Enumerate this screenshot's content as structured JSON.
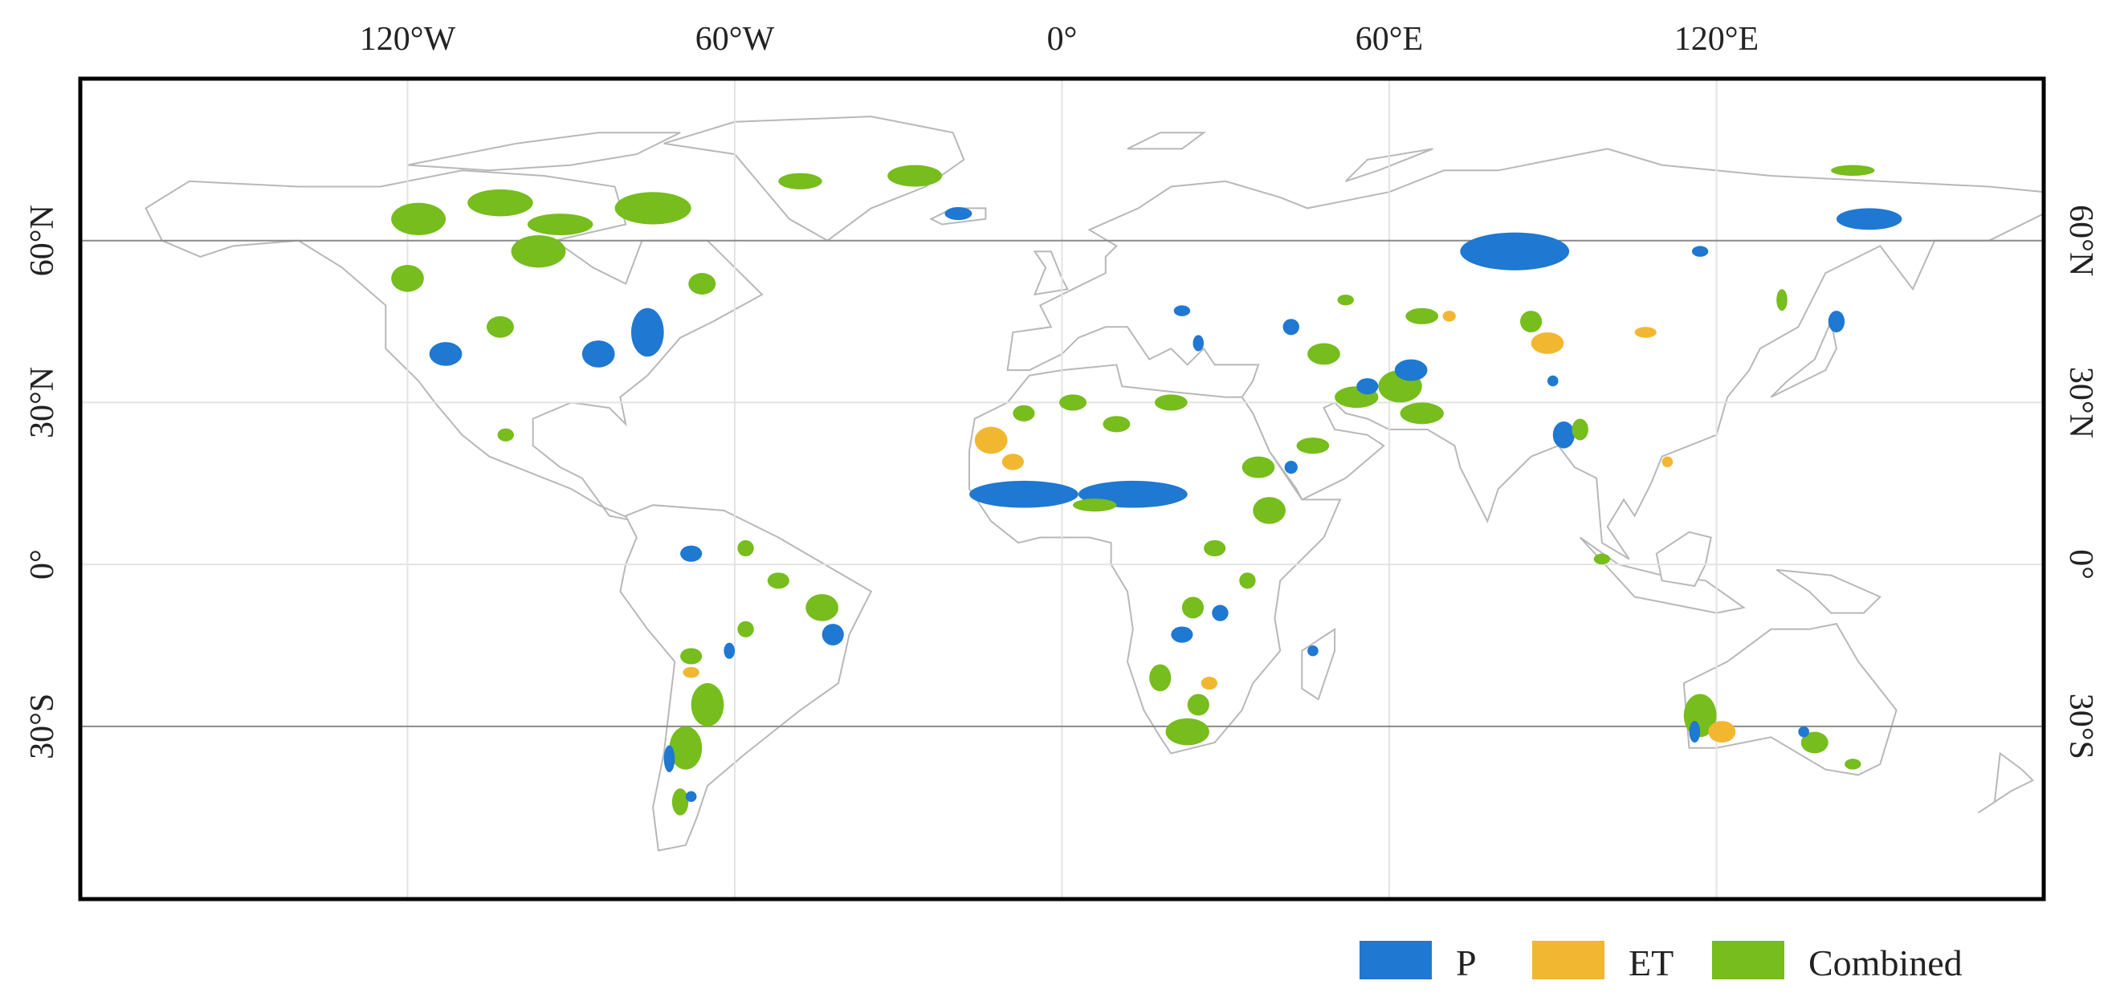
{
  "map": {
    "lon_ticks": [
      {
        "lon": -120,
        "label": "120°W"
      },
      {
        "lon": -60,
        "label": "60°W"
      },
      {
        "lon": 0,
        "label": "0°"
      },
      {
        "lon": 60,
        "label": "60°E"
      },
      {
        "lon": 120,
        "label": "120°E"
      }
    ],
    "lat_ticks": [
      {
        "lat": 60,
        "label": "60°N"
      },
      {
        "lat": 30,
        "label": "30°N"
      },
      {
        "lat": 0,
        "label": "0°"
      },
      {
        "lat": -30,
        "label": "30°S"
      }
    ],
    "reference_lats": [
      60,
      -30
    ],
    "extent": {
      "lon": [
        -180,
        180
      ],
      "lat": [
        -62,
        90
      ]
    }
  },
  "legend": {
    "placement": "bottom-right",
    "items": [
      {
        "key": "P",
        "label": "P",
        "color": "#1f78d1"
      },
      {
        "key": "ET",
        "label": "ET",
        "color": "#f2b731"
      },
      {
        "key": "Combined",
        "label": "Combined",
        "color": "#76bd1d"
      }
    ]
  },
  "regions": [
    {
      "type": "Combined",
      "lon": -118,
      "lat": 64,
      "rx": 5,
      "ry": 3
    },
    {
      "type": "Combined",
      "lon": -103,
      "lat": 67,
      "rx": 6,
      "ry": 2.5
    },
    {
      "type": "Combined",
      "lon": -92,
      "lat": 63,
      "rx": 6,
      "ry": 2
    },
    {
      "type": "Combined",
      "lon": -75,
      "lat": 66,
      "rx": 7,
      "ry": 3
    },
    {
      "type": "Combined",
      "lon": -48,
      "lat": 71,
      "rx": 4,
      "ry": 1.5
    },
    {
      "type": "Combined",
      "lon": -27,
      "lat": 72,
      "rx": 5,
      "ry": 2
    },
    {
      "type": "P",
      "lon": -19,
      "lat": 65,
      "rx": 2.5,
      "ry": 1.2
    },
    {
      "type": "Combined",
      "lon": -96,
      "lat": 58,
      "rx": 5,
      "ry": 3
    },
    {
      "type": "Combined",
      "lon": -120,
      "lat": 53,
      "rx": 3,
      "ry": 2.5
    },
    {
      "type": "Combined",
      "lon": -103,
      "lat": 44,
      "rx": 2.5,
      "ry": 2
    },
    {
      "type": "P",
      "lon": -113,
      "lat": 39,
      "rx": 3,
      "ry": 2.2
    },
    {
      "type": "P",
      "lon": -85,
      "lat": 39,
      "rx": 3,
      "ry": 2.5
    },
    {
      "type": "P",
      "lon": -76,
      "lat": 43,
      "rx": 3,
      "ry": 4.5
    },
    {
      "type": "Combined",
      "lon": -66,
      "lat": 52,
      "rx": 2.5,
      "ry": 2
    },
    {
      "type": "Combined",
      "lon": -102,
      "lat": 24,
      "rx": 1.5,
      "ry": 1.2
    },
    {
      "type": "P",
      "lon": -68,
      "lat": 2,
      "rx": 2,
      "ry": 1.5
    },
    {
      "type": "Combined",
      "lon": -58,
      "lat": 3,
      "rx": 1.5,
      "ry": 1.5
    },
    {
      "type": "Combined",
      "lon": -52,
      "lat": -3,
      "rx": 2,
      "ry": 1.5
    },
    {
      "type": "Combined",
      "lon": -44,
      "lat": -8,
      "rx": 3,
      "ry": 2.5
    },
    {
      "type": "P",
      "lon": -42,
      "lat": -13,
      "rx": 2,
      "ry": 2
    },
    {
      "type": "Combined",
      "lon": -58,
      "lat": -12,
      "rx": 1.5,
      "ry": 1.5
    },
    {
      "type": "Combined",
      "lon": -68,
      "lat": -17,
      "rx": 2,
      "ry": 1.5
    },
    {
      "type": "P",
      "lon": -61,
      "lat": -16,
      "rx": 1,
      "ry": 1.5
    },
    {
      "type": "Combined",
      "lon": -65,
      "lat": -26,
      "rx": 3,
      "ry": 4
    },
    {
      "type": "Combined",
      "lon": -69,
      "lat": -34,
      "rx": 3,
      "ry": 4
    },
    {
      "type": "P",
      "lon": -72,
      "lat": -36,
      "rx": 1,
      "ry": 2.5
    },
    {
      "type": "ET",
      "lon": -68,
      "lat": -20,
      "rx": 1.5,
      "ry": 1
    },
    {
      "type": "Combined",
      "lon": -70,
      "lat": -44,
      "rx": 1.5,
      "ry": 2.5
    },
    {
      "type": "P",
      "lon": -68,
      "lat": -43,
      "rx": 1,
      "ry": 1
    },
    {
      "type": "ET",
      "lon": -13,
      "lat": 23,
      "rx": 3,
      "ry": 2.5
    },
    {
      "type": "ET",
      "lon": -9,
      "lat": 19,
      "rx": 2,
      "ry": 1.5
    },
    {
      "type": "Combined",
      "lon": -7,
      "lat": 28,
      "rx": 2,
      "ry": 1.5
    },
    {
      "type": "P",
      "lon": -7,
      "lat": 13,
      "rx": 10,
      "ry": 2.5
    },
    {
      "type": "P",
      "lon": 13,
      "lat": 13,
      "rx": 10,
      "ry": 2.5
    },
    {
      "type": "Combined",
      "lon": 6,
      "lat": 11,
      "rx": 4,
      "ry": 1.2
    },
    {
      "type": "Combined",
      "lon": 2,
      "lat": 30,
      "rx": 2.5,
      "ry": 1.5
    },
    {
      "type": "Combined",
      "lon": 10,
      "lat": 26,
      "rx": 2.5,
      "ry": 1.5
    },
    {
      "type": "Combined",
      "lon": 20,
      "lat": 30,
      "rx": 3,
      "ry": 1.5
    },
    {
      "type": "Combined",
      "lon": 36,
      "lat": 18,
      "rx": 3,
      "ry": 2
    },
    {
      "type": "Combined",
      "lon": 38,
      "lat": 10,
      "rx": 3,
      "ry": 2.5
    },
    {
      "type": "Combined",
      "lon": 28,
      "lat": 3,
      "rx": 2,
      "ry": 1.5
    },
    {
      "type": "Combined",
      "lon": 34,
      "lat": -3,
      "rx": 1.5,
      "ry": 1.5
    },
    {
      "type": "Combined",
      "lon": 24,
      "lat": -8,
      "rx": 2,
      "ry": 2
    },
    {
      "type": "P",
      "lon": 22,
      "lat": -13,
      "rx": 2,
      "ry": 1.5
    },
    {
      "type": "P",
      "lon": 29,
      "lat": -9,
      "rx": 1.5,
      "ry": 1.5
    },
    {
      "type": "Combined",
      "lon": 18,
      "lat": -21,
      "rx": 2,
      "ry": 2.5
    },
    {
      "type": "ET",
      "lon": 27,
      "lat": -22,
      "rx": 1.5,
      "ry": 1.2
    },
    {
      "type": "Combined",
      "lon": 25,
      "lat": -26,
      "rx": 2,
      "ry": 2
    },
    {
      "type": "Combined",
      "lon": 23,
      "lat": -31,
      "rx": 4,
      "ry": 2.5
    },
    {
      "type": "P",
      "lon": 46,
      "lat": -16,
      "rx": 1,
      "ry": 1
    },
    {
      "type": "P",
      "lon": 22,
      "lat": 47,
      "rx": 1.5,
      "ry": 1
    },
    {
      "type": "P",
      "lon": 25,
      "lat": 41,
      "rx": 1,
      "ry": 1.5
    },
    {
      "type": "P",
      "lon": 42,
      "lat": 44,
      "rx": 1.5,
      "ry": 1.5
    },
    {
      "type": "Combined",
      "lon": 48,
      "lat": 39,
      "rx": 3,
      "ry": 2
    },
    {
      "type": "Combined",
      "lon": 54,
      "lat": 31,
      "rx": 4,
      "ry": 2
    },
    {
      "type": "P",
      "lon": 56,
      "lat": 33,
      "rx": 2,
      "ry": 1.5
    },
    {
      "type": "Combined",
      "lon": 62,
      "lat": 33,
      "rx": 4,
      "ry": 3
    },
    {
      "type": "P",
      "lon": 64,
      "lat": 36,
      "rx": 3,
      "ry": 2
    },
    {
      "type": "Combined",
      "lon": 66,
      "lat": 28,
      "rx": 4,
      "ry": 2
    },
    {
      "type": "Combined",
      "lon": 66,
      "lat": 46,
      "rx": 3,
      "ry": 1.5
    },
    {
      "type": "ET",
      "lon": 71,
      "lat": 46,
      "rx": 1.2,
      "ry": 1
    },
    {
      "type": "Combined",
      "lon": 52,
      "lat": 49,
      "rx": 1.5,
      "ry": 1
    },
    {
      "type": "Combined",
      "lon": 46,
      "lat": 22,
      "rx": 3,
      "ry": 1.5
    },
    {
      "type": "P",
      "lon": 42,
      "lat": 18,
      "rx": 1.2,
      "ry": 1.2
    },
    {
      "type": "P",
      "lon": 83,
      "lat": 58,
      "rx": 10,
      "ry": 3.5
    },
    {
      "type": "Combined",
      "lon": 86,
      "lat": 45,
      "rx": 2,
      "ry": 2
    },
    {
      "type": "ET",
      "lon": 89,
      "lat": 41,
      "rx": 3,
      "ry": 2
    },
    {
      "type": "ET",
      "lon": 107,
      "lat": 43,
      "rx": 2,
      "ry": 1
    },
    {
      "type": "P",
      "lon": 90,
      "lat": 34,
      "rx": 1,
      "ry": 1
    },
    {
      "type": "P",
      "lon": 92,
      "lat": 24,
      "rx": 2,
      "ry": 2.5
    },
    {
      "type": "Combined",
      "lon": 95,
      "lat": 25,
      "rx": 1.5,
      "ry": 2
    },
    {
      "type": "ET",
      "lon": 111,
      "lat": 19,
      "rx": 1,
      "ry": 1
    },
    {
      "type": "Combined",
      "lon": 99,
      "lat": 1,
      "rx": 1.5,
      "ry": 1
    },
    {
      "type": "P",
      "lon": 117,
      "lat": 58,
      "rx": 1.5,
      "ry": 1
    },
    {
      "type": "P",
      "lon": 148,
      "lat": 64,
      "rx": 6,
      "ry": 2
    },
    {
      "type": "P",
      "lon": 142,
      "lat": 45,
      "rx": 1.5,
      "ry": 2
    },
    {
      "type": "Combined",
      "lon": 145,
      "lat": 73,
      "rx": 4,
      "ry": 1
    },
    {
      "type": "Combined",
      "lon": 132,
      "lat": 49,
      "rx": 1,
      "ry": 2
    },
    {
      "type": "Combined",
      "lon": 117,
      "lat": -28,
      "rx": 3,
      "ry": 4
    },
    {
      "type": "ET",
      "lon": 121,
      "lat": -31,
      "rx": 2.5,
      "ry": 2
    },
    {
      "type": "P",
      "lon": 116,
      "lat": -31,
      "rx": 1,
      "ry": 2
    },
    {
      "type": "Combined",
      "lon": 138,
      "lat": -33,
      "rx": 2.5,
      "ry": 2
    },
    {
      "type": "P",
      "lon": 136,
      "lat": -31,
      "rx": 1,
      "ry": 1
    },
    {
      "type": "Combined",
      "lon": 145,
      "lat": -37,
      "rx": 1.5,
      "ry": 1
    }
  ]
}
